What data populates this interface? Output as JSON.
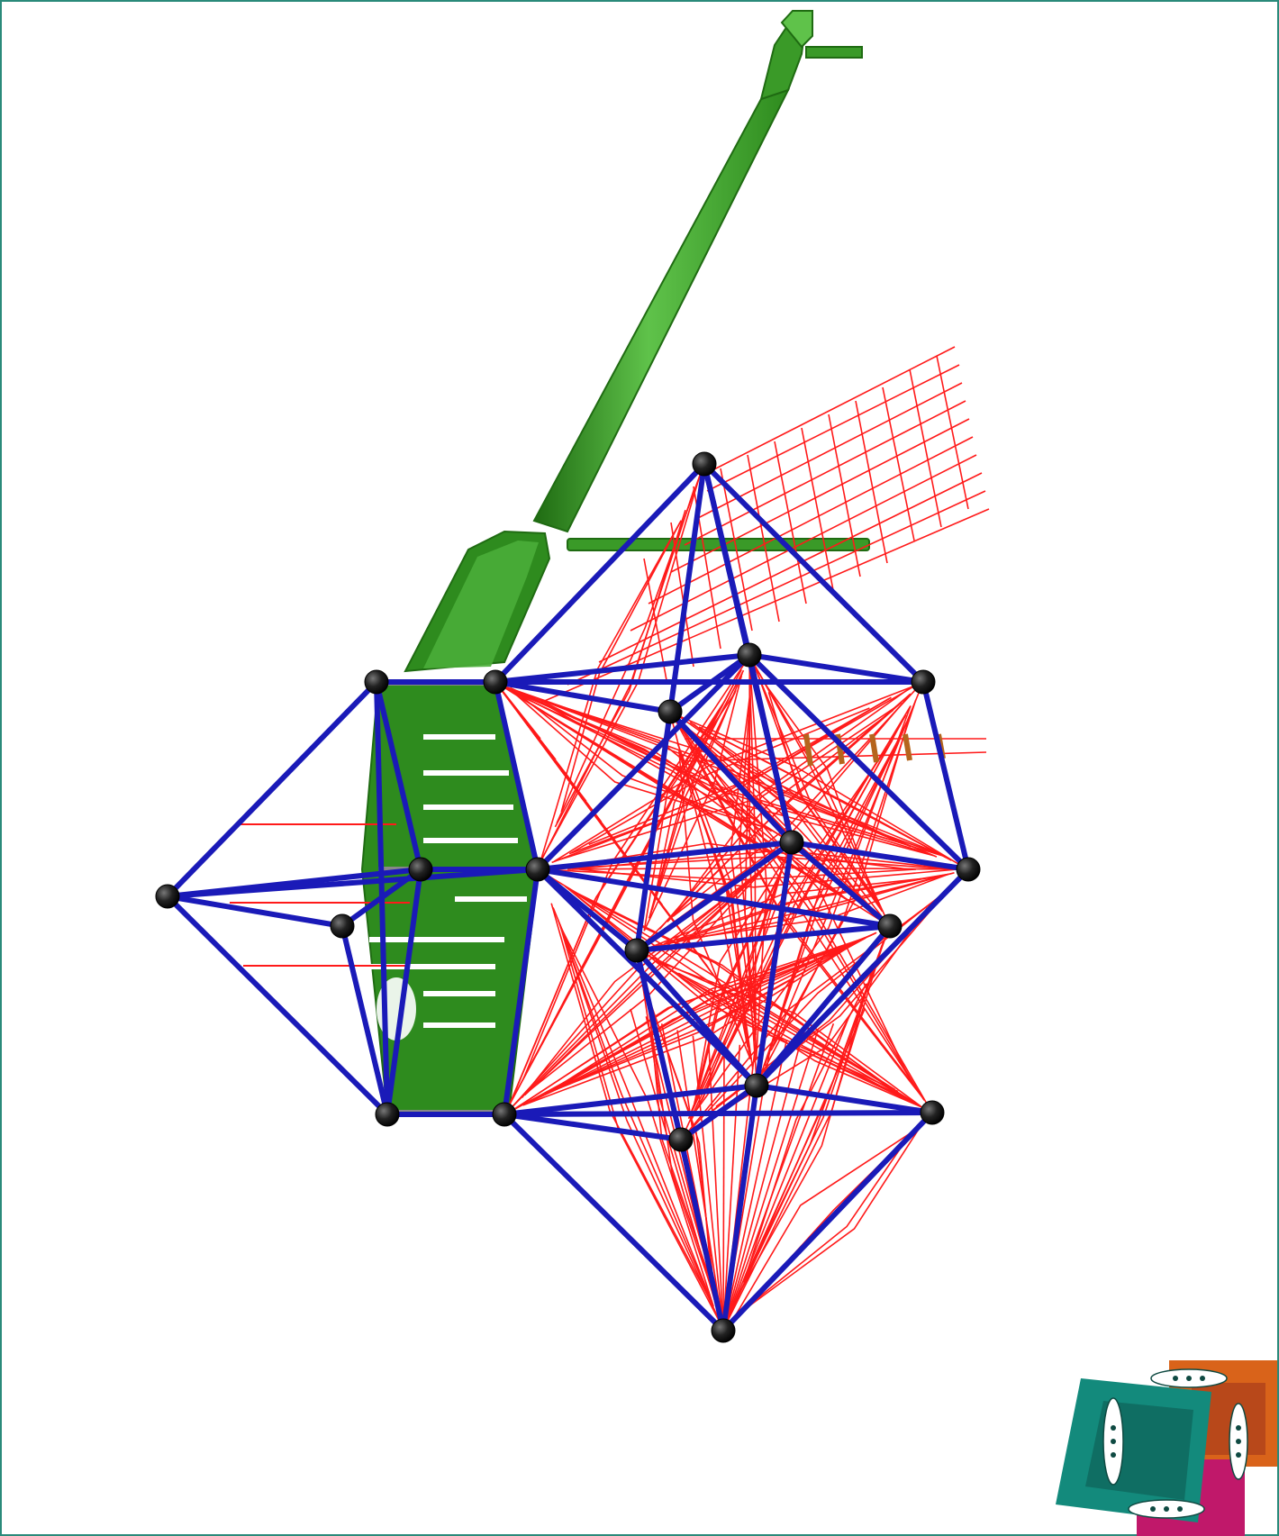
{
  "colors": {
    "background": "#ffffff",
    "frame": "#2a8a7a",
    "tube": "#2e8b1e",
    "tube_light": "#5fc24a",
    "tube_dark": "#1f6b12",
    "frame_rods": "#1a1ab8",
    "net": "#ff1a1a",
    "nodes": "#111111",
    "rungs": "#b5651d",
    "logo_teal": "#138a7c",
    "logo_orange": "#d9631a",
    "logo_magenta": "#c0186a"
  },
  "icons": {
    "logo": "rocket-logo-icon"
  }
}
